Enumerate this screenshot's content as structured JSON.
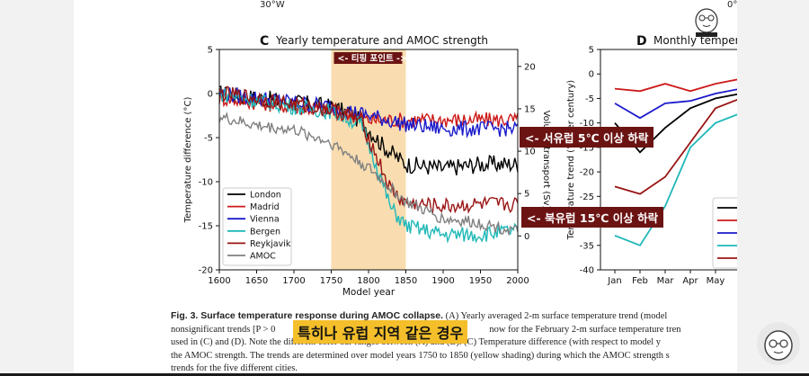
{
  "top_labels": {
    "lon_30w": "30°W",
    "lon_0": "0°"
  },
  "panel_c": {
    "letter": "C",
    "title": "Yearly temperature and AMOC strength",
    "shade_label": "<- 티핑 포인트 ->",
    "ylabel_left": "Temperature difference (°C)",
    "ylabel_right": "Volume transport (Sv)",
    "xlabel": "Model year"
  },
  "panel_d": {
    "letter": "D",
    "title": "Monthly temperature",
    "ylabel": "Temperature trend (°C per century)"
  },
  "notes": {
    "west": "<- 서유럽 5℃ 이상 하락",
    "north": "<- 북유럽 15℃ 이상 하락"
  },
  "caption": {
    "line1_bold": "Fig. 3. Surface temperature response during AMOC collapse.",
    "line1_rest": " (A) Yearly averaged 2-m surface temperature trend (model",
    "line2_a": "nonsignificant trends [P > 0",
    "line2_b": "now for the February 2-m surface temperature tren",
    "line3": "used in (C) and (D). Note the different color bar ranges between (A) and (B). (C) Temperature difference (with respect to model y",
    "line4": "the AMOC strength. The trends are determined over model years 1750 to 1850 (yellow shading) during which the AMOC strength s",
    "line5": "trends for the five different cities."
  },
  "subtitle": "특히나 유럽 지역 같은 경우",
  "icons": {
    "avatar_small": "mascot-avatar-icon",
    "avatar_large": "mascot-avatar-icon"
  },
  "colors": {
    "London": "#000000",
    "Madrid": "#cc1a1a",
    "Vienna": "#1a1acc",
    "Bergen": "#1fb8b8",
    "Reykjavik": "#991414",
    "AMOC": "#808080",
    "shade": "#f9ddb0",
    "note_bg": "#6b1313",
    "subtitle_bg": "#f4bf2a"
  },
  "chart_data": [
    {
      "type": "line",
      "title": "Yearly temperature and AMOC strength",
      "xlabel": "Model year",
      "ylabel": "Temperature difference (°C)",
      "y2label": "Volume transport (Sv)",
      "xlim": [
        1600,
        2000
      ],
      "ylim": [
        -20,
        5
      ],
      "y2lim": [
        -4,
        22
      ],
      "xticks": [
        "1600",
        "1650",
        "1700",
        "1750",
        "1800",
        "1850",
        "1900",
        "1950",
        "2000"
      ],
      "yticks": [
        "5",
        "0",
        "-5",
        "-10",
        "-15",
        "-20"
      ],
      "y2ticks": [
        "20",
        "15",
        "10",
        "5",
        "0"
      ],
      "shaded_range": [
        1750,
        1850
      ],
      "legend": "lower-left",
      "series": [
        {
          "name": "London",
          "axis": "left",
          "x": [
            1600,
            1650,
            1700,
            1750,
            1780,
            1800,
            1820,
            1850,
            1900,
            1950,
            2000
          ],
          "y": [
            0,
            -0.5,
            -1,
            -1.5,
            -2.5,
            -4,
            -6,
            -8,
            -8.5,
            -8,
            -8
          ]
        },
        {
          "name": "Madrid",
          "axis": "left",
          "x": [
            1600,
            1650,
            1700,
            1750,
            1800,
            1850,
            1900,
            1950,
            2000
          ],
          "y": [
            -0.5,
            -1,
            -1.5,
            -2,
            -3,
            -3,
            -3,
            -3,
            -3
          ]
        },
        {
          "name": "Vienna",
          "axis": "left",
          "x": [
            1600,
            1650,
            1700,
            1750,
            1800,
            1850,
            1900,
            1950,
            2000
          ],
          "y": [
            0,
            -0.5,
            -1,
            -1.5,
            -2.5,
            -3.5,
            -4,
            -4,
            -4
          ]
        },
        {
          "name": "Bergen",
          "axis": "left",
          "x": [
            1600,
            1650,
            1700,
            1750,
            1790,
            1810,
            1830,
            1850,
            1900,
            1950,
            2000
          ],
          "y": [
            0,
            -0.8,
            -1.5,
            -2,
            -3.5,
            -8,
            -13,
            -15,
            -16,
            -16,
            -15.5
          ]
        },
        {
          "name": "Reykjavik",
          "axis": "left",
          "x": [
            1600,
            1650,
            1700,
            1750,
            1790,
            1810,
            1830,
            1850,
            1900,
            1950,
            2000
          ],
          "y": [
            0,
            -0.5,
            -1.2,
            -1.8,
            -3,
            -7,
            -11,
            -12.5,
            -12.8,
            -12.6,
            -12.6
          ]
        },
        {
          "name": "AMOC",
          "axis": "right",
          "x": [
            1600,
            1650,
            1700,
            1750,
            1800,
            1850,
            1900,
            1950,
            2000
          ],
          "y": [
            14,
            13,
            12.5,
            11,
            8,
            4,
            2,
            1.5,
            0.5
          ]
        }
      ]
    },
    {
      "type": "line",
      "title": "Monthly temperature",
      "ylabel": "Temperature trend (°C per century)",
      "categories": [
        "Jan",
        "Feb",
        "Mar",
        "Apr",
        "May",
        "J"
      ],
      "ylim": [
        -40,
        5
      ],
      "yticks": [
        "5",
        "0",
        "-5",
        "-10",
        "-15",
        "-20",
        "-25",
        "-30",
        "-35",
        "-40"
      ],
      "series": [
        {
          "name": "London",
          "values": [
            -10,
            -16,
            -11,
            -7,
            -5,
            -4
          ]
        },
        {
          "name": "Madrid",
          "values": [
            -3,
            -3.5,
            -2,
            -3.5,
            -2,
            -1
          ]
        },
        {
          "name": "Vienna",
          "values": [
            -6,
            -9,
            -6,
            -5.5,
            -4,
            -3
          ]
        },
        {
          "name": "Bergen",
          "values": [
            -33,
            -35,
            -27,
            -15,
            -10,
            -8
          ]
        },
        {
          "name": "Reykjavik",
          "values": [
            -23,
            -24.5,
            -21,
            -14,
            -7,
            -5
          ]
        }
      ]
    }
  ]
}
